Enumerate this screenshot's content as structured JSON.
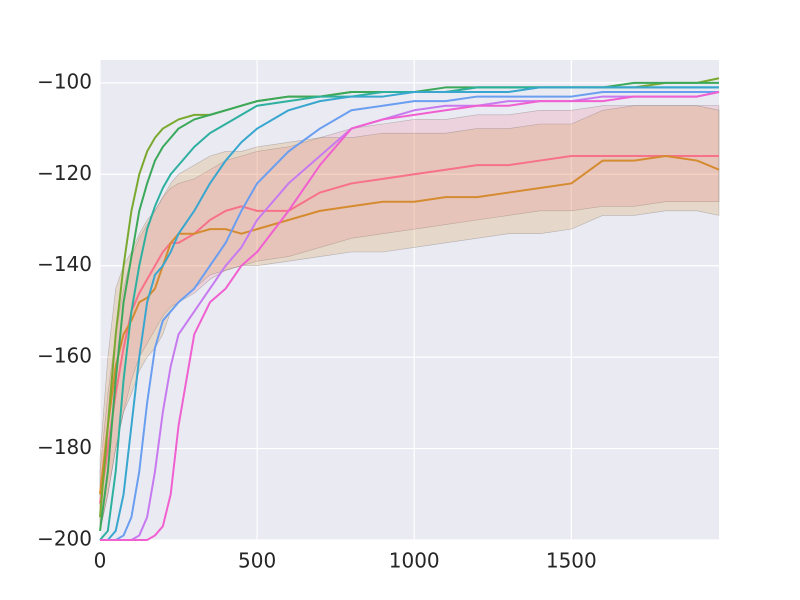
{
  "chart_data": {
    "type": "line",
    "x": [
      0,
      25,
      50,
      75,
      100,
      125,
      150,
      175,
      200,
      225,
      250,
      300,
      350,
      400,
      450,
      500,
      600,
      700,
      800,
      900,
      1000,
      1100,
      1200,
      1300,
      1400,
      1500,
      1600,
      1700,
      1800,
      1900,
      1970
    ],
    "xlim": [
      0,
      1970
    ],
    "ylim": [
      -200,
      -95
    ],
    "xticks": [
      0,
      500,
      1000,
      1500
    ],
    "yticks": [
      {
        "value": -200,
        "label": "−200"
      },
      {
        "value": -180,
        "label": "−180"
      },
      {
        "value": -160,
        "label": "−160"
      },
      {
        "value": -140,
        "label": "−140"
      },
      {
        "value": -120,
        "label": "−120"
      },
      {
        "value": -100,
        "label": "−100"
      }
    ],
    "grid": true,
    "series": [
      {
        "color": "#f77189",
        "values": [
          -192,
          -180,
          -168,
          -158,
          -150,
          -146,
          -143,
          -140,
          -137,
          -135,
          -135,
          -133,
          -130,
          -128,
          -127,
          -128,
          -128,
          -124,
          -122,
          -121,
          -120,
          -119,
          -118,
          -118,
          -117,
          -116,
          -116,
          -116,
          -116,
          -116,
          -116
        ],
        "lower": [
          -198,
          -190,
          -180,
          -172,
          -165,
          -160,
          -157,
          -154,
          -151,
          -149,
          -148,
          -146,
          -143,
          -141,
          -140,
          -139,
          -138,
          -136,
          -134,
          -133,
          -132,
          -131,
          -130,
          -129,
          -128,
          -128,
          -127,
          -127,
          -126,
          -126,
          -126
        ],
        "upper": [
          -185,
          -168,
          -155,
          -145,
          -138,
          -134,
          -131,
          -128,
          -125,
          -123,
          -122,
          -121,
          -119,
          -117,
          -116,
          -115,
          -114,
          -112,
          -110,
          -109,
          -108,
          -108,
          -107,
          -107,
          -106,
          -106,
          -105,
          -105,
          -105,
          -105,
          -105
        ]
      },
      {
        "color": "#d58b30",
        "values": [
          -190,
          -175,
          -162,
          -155,
          -152,
          -148,
          -147,
          -145,
          -140,
          -135,
          -133,
          -133,
          -132,
          -132,
          -133,
          -132,
          -130,
          -128,
          -127,
          -126,
          -126,
          -125,
          -125,
          -124,
          -123,
          -122,
          -117,
          -117,
          -116,
          -117,
          -119
        ],
        "lower": [
          -198,
          -190,
          -180,
          -172,
          -168,
          -163,
          -160,
          -158,
          -155,
          -150,
          -148,
          -145,
          -142,
          -141,
          -140,
          -140,
          -139,
          -138,
          -137,
          -137,
          -136,
          -135,
          -134,
          -133,
          -133,
          -132,
          -129,
          -129,
          -128,
          -128,
          -129
        ],
        "upper": [
          -182,
          -160,
          -145,
          -140,
          -137,
          -133,
          -130,
          -128,
          -125,
          -122,
          -120,
          -118,
          -116,
          -115,
          -115,
          -114,
          -113,
          -112,
          -112,
          -111,
          -111,
          -111,
          -110,
          -110,
          -109,
          -109,
          -106,
          -105,
          -105,
          -105,
          -106
        ]
      },
      {
        "color": "#7aa92f",
        "values": [
          -195,
          -175,
          -155,
          -140,
          -128,
          -120,
          -115,
          -112,
          -110,
          -109,
          -108,
          -107,
          -107,
          -106,
          -105,
          -104,
          -103,
          -103,
          -102,
          -102,
          -102,
          -102,
          -101,
          -101,
          -101,
          -101,
          -101,
          -101,
          -100,
          -100,
          -99
        ]
      },
      {
        "color": "#3ba85a",
        "values": [
          -198,
          -185,
          -165,
          -148,
          -138,
          -128,
          -122,
          -117,
          -114,
          -112,
          -110,
          -108,
          -107,
          -106,
          -105,
          -104,
          -103,
          -103,
          -102,
          -102,
          -102,
          -101,
          -101,
          -101,
          -101,
          -101,
          -101,
          -100,
          -100,
          -100,
          -100
        ]
      },
      {
        "color": "#2eb0a0",
        "values": [
          -200,
          -198,
          -185,
          -165,
          -150,
          -140,
          -132,
          -127,
          -123,
          -120,
          -118,
          -114,
          -111,
          -109,
          -107,
          -105,
          -104,
          -103,
          -103,
          -102,
          -102,
          -102,
          -101,
          -101,
          -101,
          -101,
          -101,
          -101,
          -101,
          -101,
          -101
        ]
      },
      {
        "color": "#38a6cf",
        "values": [
          -200,
          -200,
          -198,
          -190,
          -175,
          -160,
          -148,
          -142,
          -140,
          -137,
          -133,
          -128,
          -122,
          -117,
          -113,
          -110,
          -106,
          -104,
          -103,
          -103,
          -102,
          -102,
          -102,
          -102,
          -101,
          -101,
          -101,
          -101,
          -101,
          -101,
          -101
        ]
      },
      {
        "color": "#6a9ef0",
        "values": [
          -200,
          -200,
          -200,
          -199,
          -195,
          -185,
          -170,
          -158,
          -152,
          -150,
          -148,
          -145,
          -140,
          -135,
          -128,
          -122,
          -115,
          -110,
          -106,
          -105,
          -104,
          -104,
          -103,
          -103,
          -103,
          -103,
          -102,
          -102,
          -102,
          -102,
          -102
        ]
      },
      {
        "color": "#c77af0",
        "values": [
          -200,
          -200,
          -200,
          -200,
          -200,
          -199,
          -195,
          -185,
          -172,
          -162,
          -155,
          -150,
          -145,
          -140,
          -136,
          -130,
          -122,
          -116,
          -110,
          -108,
          -106,
          -105,
          -105,
          -104,
          -104,
          -104,
          -103,
          -103,
          -103,
          -103,
          -102
        ]
      },
      {
        "color": "#f060d0",
        "values": [
          -200,
          -200,
          -200,
          -200,
          -200,
          -200,
          -200,
          -199,
          -197,
          -190,
          -175,
          -155,
          -148,
          -145,
          -140,
          -137,
          -128,
          -118,
          -110,
          -108,
          -107,
          -106,
          -105,
          -105,
          -104,
          -104,
          -104,
          -103,
          -103,
          -103,
          -102
        ]
      }
    ]
  }
}
